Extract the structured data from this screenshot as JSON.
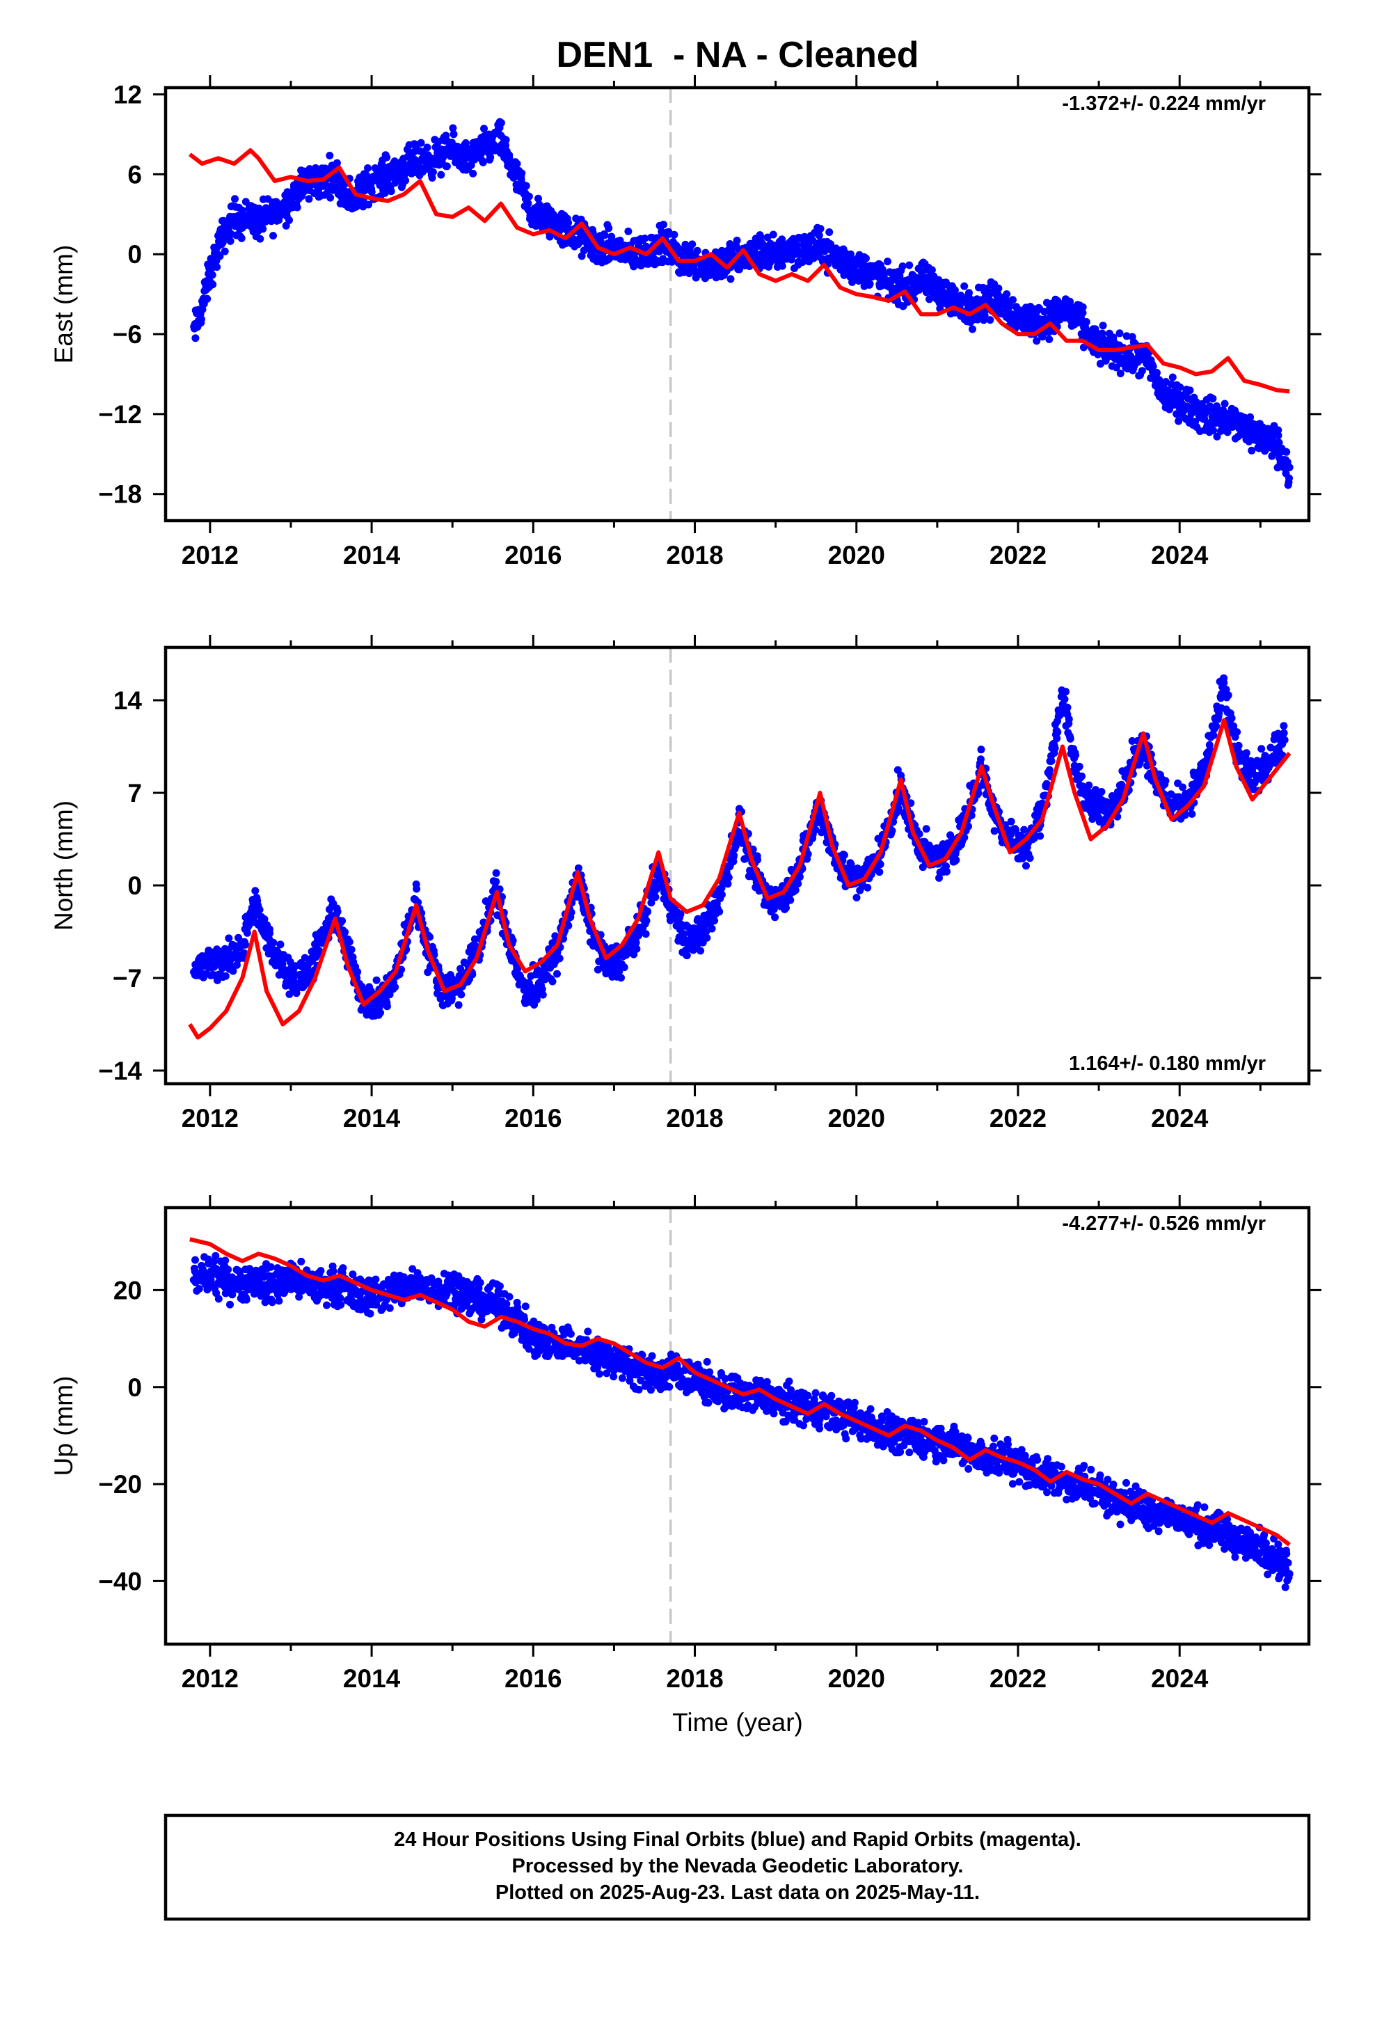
{
  "page": {
    "title": "DEN1  - NA - Cleaned",
    "xlabel": "Time (year)",
    "footer": [
      "24 Hour Positions Using Final Orbits (blue) and Rapid Orbits (magenta).",
      "Processed by the Nevada Geodetic Laboratory.",
      "Plotted on 2025-Aug-23. Last data on 2025-May-11."
    ]
  },
  "chart_data": [
    {
      "type": "scatter",
      "ylabel": "East (mm)",
      "rate": "-1.372+/- 0.224 mm/yr",
      "rate_position": "top-right",
      "xlim": [
        2011.45,
        2025.6
      ],
      "ylim": [
        -20,
        12.5
      ],
      "xticks": [
        2012,
        2014,
        2016,
        2018,
        2020,
        2022,
        2024
      ],
      "yticks": [
        12,
        6,
        0,
        -6,
        -12,
        -18
      ],
      "marker_year": 2017.7,
      "colors": {
        "points": "#0000ff",
        "model": "#ff0000",
        "marker": "#c8c8c8"
      },
      "series": [
        {
          "name": "Final Orbits",
          "x": [
            2011.8,
            2011.9,
            2012.0,
            2012.1,
            2012.2,
            2012.3,
            2012.4,
            2012.5,
            2012.6,
            2012.7,
            2012.8,
            2012.9,
            2013.0,
            2013.1,
            2013.2,
            2013.3,
            2013.4,
            2013.5,
            2013.6,
            2013.7,
            2013.8,
            2013.9,
            2014.0,
            2014.2,
            2014.4,
            2014.6,
            2014.8,
            2015.0,
            2015.2,
            2015.4,
            2015.6,
            2015.8,
            2016.0,
            2016.2,
            2016.4,
            2016.6,
            2016.8,
            2017.0,
            2017.2,
            2017.4,
            2017.6,
            2017.8,
            2018.0,
            2018.2,
            2018.4,
            2018.6,
            2018.8,
            2019.0,
            2019.2,
            2019.4,
            2019.6,
            2019.8,
            2020.0,
            2020.2,
            2020.4,
            2020.6,
            2020.8,
            2021.0,
            2021.2,
            2021.4,
            2021.6,
            2021.8,
            2022.0,
            2022.2,
            2022.4,
            2022.6,
            2022.8,
            2023.0,
            2023.2,
            2023.4,
            2023.6,
            2023.8,
            2024.0,
            2024.2,
            2024.4,
            2024.6,
            2024.8,
            2025.0,
            2025.2,
            2025.36
          ],
          "y": [
            -6.0,
            -4.0,
            -1.5,
            0.5,
            1.8,
            2.8,
            2.5,
            3.0,
            2.2,
            2.8,
            3.0,
            3.5,
            4.2,
            5.0,
            5.2,
            5.6,
            5.4,
            6.0,
            5.5,
            4.5,
            4.2,
            4.8,
            5.5,
            6.0,
            6.5,
            7.0,
            7.2,
            7.8,
            7.0,
            8.0,
            8.5,
            5.5,
            3.0,
            2.5,
            1.8,
            1.2,
            0.5,
            0.5,
            0.0,
            0.2,
            0.8,
            -0.2,
            -0.5,
            -0.8,
            -0.5,
            -0.3,
            0.2,
            0.0,
            0.5,
            0.3,
            0.5,
            -0.5,
            -1.0,
            -1.5,
            -2.2,
            -2.5,
            -2.0,
            -2.5,
            -3.5,
            -4.0,
            -3.5,
            -3.5,
            -4.8,
            -5.0,
            -5.0,
            -4.0,
            -5.5,
            -7.0,
            -7.2,
            -7.8,
            -8.0,
            -10.5,
            -11.0,
            -11.8,
            -12.2,
            -12.5,
            -13.0,
            -13.8,
            -14.2,
            -16.0
          ]
        },
        {
          "name": "Model",
          "x": [
            2011.75,
            2011.9,
            2012.1,
            2012.3,
            2012.5,
            2012.6,
            2012.8,
            2013.0,
            2013.2,
            2013.4,
            2013.6,
            2013.8,
            2014.0,
            2014.2,
            2014.4,
            2014.6,
            2014.8,
            2015.0,
            2015.2,
            2015.4,
            2015.6,
            2015.8,
            2016.0,
            2016.2,
            2016.4,
            2016.6,
            2016.8,
            2017.0,
            2017.2,
            2017.4,
            2017.6,
            2017.8,
            2018.0,
            2018.2,
            2018.4,
            2018.6,
            2018.8,
            2019.0,
            2019.2,
            2019.4,
            2019.6,
            2019.8,
            2020.0,
            2020.2,
            2020.4,
            2020.6,
            2020.8,
            2021.0,
            2021.2,
            2021.4,
            2021.6,
            2021.8,
            2022.0,
            2022.2,
            2022.4,
            2022.6,
            2022.8,
            2023.0,
            2023.2,
            2023.4,
            2023.6,
            2023.8,
            2024.0,
            2024.2,
            2024.4,
            2024.6,
            2024.8,
            2025.0,
            2025.2,
            2025.36
          ],
          "y": [
            7.5,
            6.8,
            7.2,
            6.8,
            7.8,
            7.2,
            5.5,
            5.8,
            5.5,
            5.6,
            6.5,
            4.5,
            4.2,
            4.0,
            4.5,
            5.5,
            3.0,
            2.8,
            3.5,
            2.5,
            3.8,
            2.0,
            1.5,
            1.8,
            1.2,
            2.3,
            0.5,
            0.0,
            0.5,
            0.0,
            1.2,
            -0.5,
            -0.5,
            0.0,
            -1.0,
            0.3,
            -1.5,
            -2.0,
            -1.5,
            -2.0,
            -0.8,
            -2.5,
            -3.0,
            -3.2,
            -3.5,
            -2.8,
            -4.5,
            -4.5,
            -4.0,
            -4.5,
            -3.8,
            -5.2,
            -6.0,
            -6.0,
            -5.2,
            -6.5,
            -6.5,
            -7.2,
            -7.2,
            -7.0,
            -6.8,
            -8.2,
            -8.5,
            -9.0,
            -8.8,
            -7.8,
            -9.5,
            -9.8,
            -10.2,
            -10.3
          ]
        }
      ]
    },
    {
      "type": "scatter",
      "ylabel": "North (mm)",
      "rate": "1.164+/- 0.180 mm/yr",
      "rate_position": "bottom-right",
      "xlim": [
        2011.45,
        2025.6
      ],
      "ylim": [
        -15,
        18
      ],
      "xticks": [
        2012,
        2014,
        2016,
        2018,
        2020,
        2022,
        2024
      ],
      "yticks": [
        14,
        7,
        0,
        -7,
        -14
      ],
      "marker_year": 2017.7,
      "colors": {
        "points": "#0000ff",
        "model": "#ff0000",
        "marker": "#c8c8c8"
      },
      "series": [
        {
          "name": "Final Orbits",
          "x": [
            2011.8,
            2012.0,
            2012.2,
            2012.4,
            2012.55,
            2012.7,
            2012.9,
            2013.1,
            2013.3,
            2013.55,
            2013.7,
            2013.9,
            2014.1,
            2014.3,
            2014.55,
            2014.7,
            2014.9,
            2015.1,
            2015.3,
            2015.55,
            2015.7,
            2015.9,
            2016.1,
            2016.3,
            2016.55,
            2016.7,
            2016.9,
            2017.1,
            2017.3,
            2017.55,
            2017.7,
            2017.9,
            2018.1,
            2018.3,
            2018.55,
            2018.7,
            2018.9,
            2019.1,
            2019.3,
            2019.55,
            2019.7,
            2019.9,
            2020.1,
            2020.3,
            2020.55,
            2020.7,
            2020.9,
            2021.1,
            2021.3,
            2021.55,
            2021.7,
            2021.9,
            2022.1,
            2022.3,
            2022.55,
            2022.7,
            2022.9,
            2023.1,
            2023.3,
            2023.55,
            2023.7,
            2023.9,
            2024.1,
            2024.3,
            2024.55,
            2024.7,
            2024.9,
            2025.1,
            2025.3
          ],
          "y": [
            -6.5,
            -6.0,
            -5.8,
            -4.5,
            -1.5,
            -4.0,
            -6.0,
            -7.5,
            -5.5,
            -2.0,
            -5.0,
            -8.5,
            -9.0,
            -7.0,
            -1.0,
            -5.0,
            -8.0,
            -7.5,
            -5.0,
            -0.5,
            -4.0,
            -8.5,
            -7.0,
            -5.0,
            0.5,
            -3.0,
            -6.0,
            -5.5,
            -3.5,
            1.0,
            -1.5,
            -4.5,
            -3.5,
            -1.0,
            4.5,
            1.5,
            -1.0,
            -1.0,
            1.5,
            6.0,
            3.0,
            0.5,
            0.5,
            2.5,
            7.5,
            4.0,
            2.0,
            2.0,
            4.0,
            9.0,
            5.5,
            3.5,
            3.0,
            5.5,
            14.5,
            9.0,
            6.0,
            5.5,
            7.5,
            11.0,
            8.0,
            6.0,
            6.5,
            8.5,
            15.0,
            10.0,
            8.0,
            9.5,
            11.0
          ]
        },
        {
          "name": "Model",
          "x": [
            2011.75,
            2011.85,
            2012.0,
            2012.2,
            2012.4,
            2012.55,
            2012.7,
            2012.9,
            2013.1,
            2013.3,
            2013.55,
            2013.7,
            2013.9,
            2014.1,
            2014.3,
            2014.55,
            2014.7,
            2014.9,
            2015.1,
            2015.3,
            2015.55,
            2015.7,
            2015.9,
            2016.1,
            2016.3,
            2016.55,
            2016.7,
            2016.9,
            2017.1,
            2017.3,
            2017.55,
            2017.7,
            2017.9,
            2018.1,
            2018.3,
            2018.55,
            2018.7,
            2018.9,
            2019.1,
            2019.3,
            2019.55,
            2019.7,
            2019.9,
            2020.1,
            2020.3,
            2020.55,
            2020.7,
            2020.9,
            2021.1,
            2021.3,
            2021.55,
            2021.7,
            2021.9,
            2022.1,
            2022.3,
            2022.55,
            2022.7,
            2022.9,
            2023.1,
            2023.3,
            2023.55,
            2023.7,
            2023.9,
            2024.1,
            2024.3,
            2024.55,
            2024.7,
            2024.9,
            2025.1,
            2025.36
          ],
          "y": [
            -10.5,
            -11.5,
            -10.8,
            -9.5,
            -7.0,
            -3.5,
            -8.0,
            -10.5,
            -9.5,
            -7.0,
            -2.5,
            -6.0,
            -9.0,
            -8.0,
            -6.5,
            -1.5,
            -5.0,
            -8.0,
            -7.5,
            -5.5,
            -0.5,
            -4.5,
            -6.5,
            -5.8,
            -4.5,
            1.0,
            -2.5,
            -5.5,
            -4.5,
            -2.5,
            2.5,
            -1.0,
            -2.0,
            -1.5,
            0.5,
            5.5,
            2.0,
            -1.0,
            -0.5,
            1.5,
            7.0,
            3.0,
            0.0,
            0.5,
            2.5,
            8.0,
            4.0,
            1.5,
            2.0,
            4.0,
            9.0,
            6.0,
            2.5,
            3.5,
            5.0,
            10.5,
            7.0,
            3.5,
            4.5,
            6.5,
            11.5,
            8.0,
            5.0,
            6.0,
            7.5,
            12.5,
            9.0,
            6.5,
            8.0,
            10.0
          ]
        }
      ]
    },
    {
      "type": "scatter",
      "ylabel": "Up (mm)",
      "rate": "-4.277+/- 0.526 mm/yr",
      "rate_position": "top-right",
      "xlim": [
        2011.45,
        2025.6
      ],
      "ylim": [
        -53,
        37
      ],
      "xticks": [
        2012,
        2014,
        2016,
        2018,
        2020,
        2022,
        2024
      ],
      "yticks": [
        20,
        0,
        -20,
        -40
      ],
      "marker_year": 2017.7,
      "colors": {
        "points": "#0000ff",
        "model": "#ff0000",
        "marker": "#c8c8c8"
      },
      "series": [
        {
          "name": "Final Orbits",
          "x": [
            2011.8,
            2012.0,
            2012.2,
            2012.4,
            2012.6,
            2012.8,
            2013.0,
            2013.2,
            2013.4,
            2013.6,
            2013.8,
            2014.0,
            2014.2,
            2014.4,
            2014.6,
            2014.8,
            2015.0,
            2015.2,
            2015.4,
            2015.6,
            2015.8,
            2016.0,
            2016.2,
            2016.4,
            2016.6,
            2016.8,
            2017.0,
            2017.2,
            2017.4,
            2017.6,
            2017.8,
            2018.0,
            2018.2,
            2018.4,
            2018.6,
            2018.8,
            2019.0,
            2019.2,
            2019.4,
            2019.6,
            2019.8,
            2020.0,
            2020.2,
            2020.4,
            2020.6,
            2020.8,
            2021.0,
            2021.2,
            2021.4,
            2021.6,
            2021.8,
            2022.0,
            2022.2,
            2022.4,
            2022.6,
            2022.8,
            2023.0,
            2023.2,
            2023.4,
            2023.6,
            2023.8,
            2024.0,
            2024.2,
            2024.4,
            2024.6,
            2024.8,
            2025.0,
            2025.2,
            2025.36
          ],
          "y": [
            22.0,
            23.0,
            22.0,
            21.5,
            22.0,
            21.0,
            22.5,
            21.0,
            20.5,
            21.0,
            19.0,
            19.0,
            19.5,
            20.5,
            21.0,
            20.0,
            21.0,
            18.5,
            18.0,
            16.5,
            14.0,
            10.0,
            9.5,
            9.0,
            8.0,
            6.5,
            6.0,
            4.5,
            3.0,
            2.5,
            3.0,
            1.5,
            0.0,
            -1.0,
            -1.5,
            -2.0,
            -2.5,
            -3.5,
            -4.0,
            -4.5,
            -6.0,
            -7.0,
            -8.5,
            -9.0,
            -10.0,
            -10.5,
            -11.0,
            -12.0,
            -13.5,
            -14.5,
            -15.0,
            -16.0,
            -17.5,
            -18.5,
            -19.5,
            -20.0,
            -21.5,
            -23.0,
            -24.5,
            -25.0,
            -26.0,
            -27.0,
            -28.5,
            -29.5,
            -30.5,
            -32.0,
            -33.0,
            -35.0,
            -38.5
          ]
        },
        {
          "name": "Model",
          "x": [
            2011.75,
            2012.0,
            2012.2,
            2012.4,
            2012.6,
            2012.8,
            2013.0,
            2013.2,
            2013.4,
            2013.6,
            2013.8,
            2014.0,
            2014.2,
            2014.4,
            2014.6,
            2014.8,
            2015.0,
            2015.2,
            2015.4,
            2015.6,
            2015.8,
            2016.0,
            2016.2,
            2016.4,
            2016.6,
            2016.8,
            2017.0,
            2017.2,
            2017.4,
            2017.6,
            2017.8,
            2018.0,
            2018.2,
            2018.4,
            2018.6,
            2018.8,
            2019.0,
            2019.2,
            2019.4,
            2019.6,
            2019.8,
            2020.0,
            2020.2,
            2020.4,
            2020.6,
            2020.8,
            2021.0,
            2021.2,
            2021.4,
            2021.6,
            2021.8,
            2022.0,
            2022.2,
            2022.4,
            2022.6,
            2022.8,
            2023.0,
            2023.2,
            2023.4,
            2023.6,
            2023.8,
            2024.0,
            2024.2,
            2024.4,
            2024.6,
            2024.8,
            2025.0,
            2025.2,
            2025.36
          ],
          "y": [
            30.5,
            29.5,
            27.5,
            26.0,
            27.5,
            26.5,
            25.0,
            23.0,
            22.0,
            23.0,
            21.5,
            20.0,
            19.0,
            18.0,
            19.0,
            17.5,
            16.0,
            13.5,
            12.5,
            14.5,
            13.5,
            12.0,
            11.0,
            9.0,
            8.5,
            10.0,
            9.0,
            7.0,
            5.0,
            4.0,
            6.0,
            3.0,
            1.5,
            0.0,
            -1.5,
            -0.5,
            -2.5,
            -4.0,
            -5.5,
            -3.5,
            -5.5,
            -7.0,
            -8.5,
            -10.0,
            -8.0,
            -9.0,
            -11.0,
            -12.5,
            -15.0,
            -13.0,
            -14.5,
            -15.5,
            -17.0,
            -19.5,
            -17.5,
            -19.0,
            -20.0,
            -22.0,
            -24.0,
            -22.0,
            -23.5,
            -25.0,
            -26.5,
            -28.0,
            -26.0,
            -27.5,
            -29.0,
            -30.5,
            -32.5
          ]
        }
      ]
    }
  ]
}
